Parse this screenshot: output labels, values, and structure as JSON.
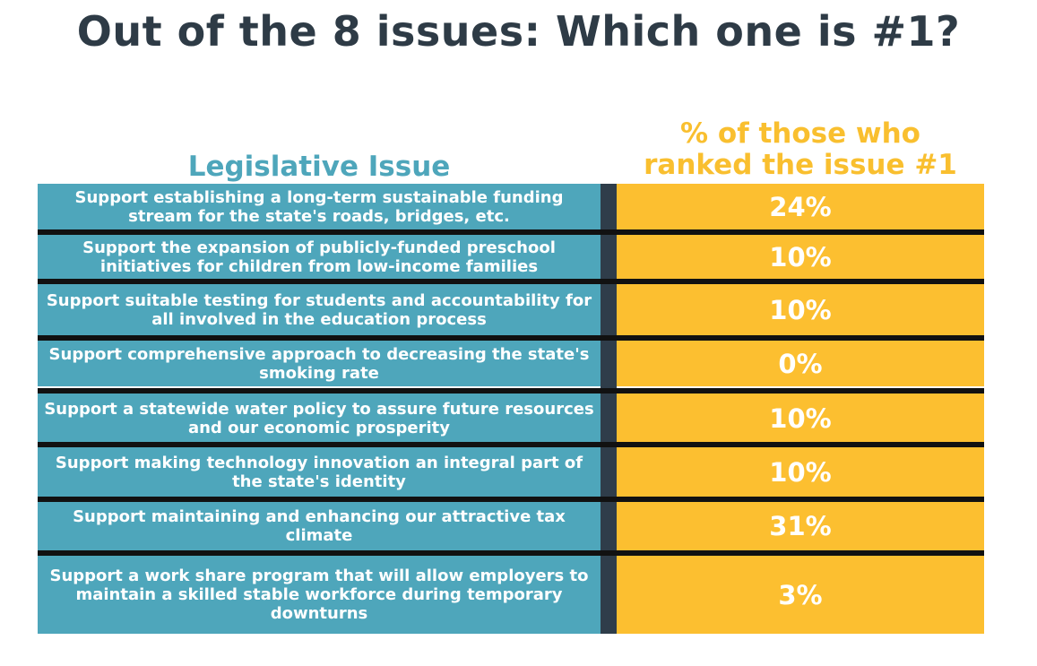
{
  "chart_data": {
    "type": "table",
    "title": "Out of the 8 issues: Which one is #1?",
    "columns": [
      "Legislative Issue",
      "% of those who ranked the issue #1"
    ],
    "column_header_right_lines": [
      "% of those who",
      "ranked the issue #1"
    ],
    "rows": [
      {
        "issue": "Support establishing a long-term sustainable funding stream for the state's roads, bridges, etc.",
        "percent_label": "24%",
        "value": 24
      },
      {
        "issue": "Support the expansion of publicly-funded preschool initiatives for children from low-income families",
        "percent_label": "10%",
        "value": 10
      },
      {
        "issue": "Support suitable testing for students and accountability for all involved in the education process",
        "percent_label": "10%",
        "value": 10
      },
      {
        "issue": "Support comprehensive approach to decreasing the state's smoking rate",
        "percent_label": "0%",
        "value": 0
      },
      {
        "issue": "Support a statewide water policy to assure future resources and our economic prosperity",
        "percent_label": "10%",
        "value": 10
      },
      {
        "issue": "Support making technology innovation an integral part of the state's identity",
        "percent_label": "10%",
        "value": 10
      },
      {
        "issue": "Support maintaining and enhancing our attractive tax climate",
        "percent_label": "31%",
        "value": 31
      },
      {
        "issue": "Support a work share program that will allow employers to maintain a skilled stable workforce during temporary downturns",
        "percent_label": "3%",
        "value": 3
      }
    ]
  },
  "colors": {
    "title": "#2e3b46",
    "issue_bg": "#4ea6bb",
    "percent_bg": "#fcbf30",
    "header_left": "#4ea6bb",
    "header_right": "#f9bf2f",
    "divider": "#2f3d4a",
    "row_line": "#111111",
    "cell_text": "#ffffff"
  }
}
